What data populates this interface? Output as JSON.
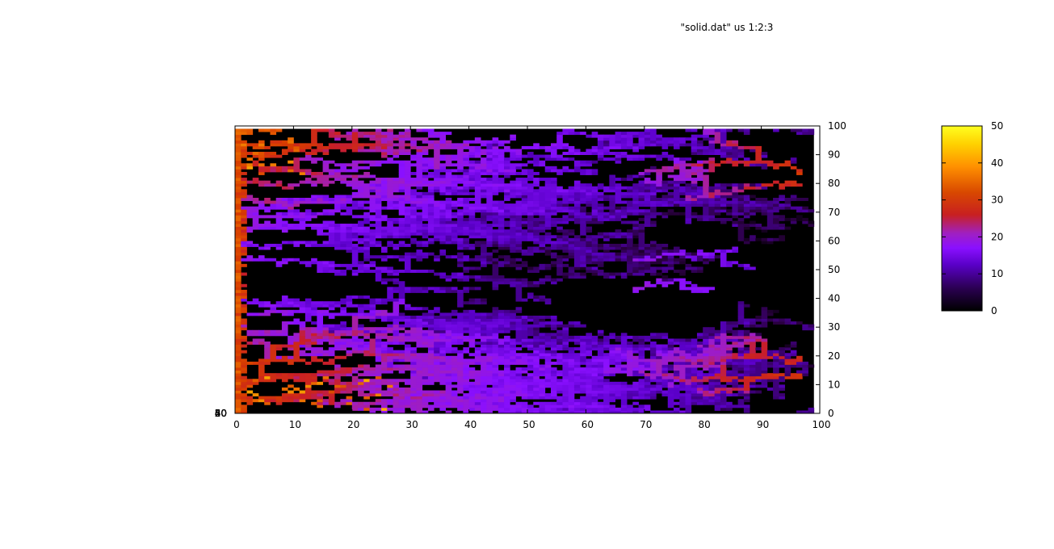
{
  "chart_data": {
    "type": "heatmap",
    "title": "",
    "key_label": "\"solid.dat\" us 1:2:3",
    "xlabel": "",
    "ylabel": "",
    "xlim": [
      0,
      100
    ],
    "ylim": [
      0,
      100
    ],
    "x_ticks": [
      "0",
      "10",
      "20",
      "30",
      "40",
      "50",
      "60",
      "70",
      "80",
      "90",
      "100"
    ],
    "y_ticks_right": [
      "0",
      "10",
      "20",
      "30",
      "40",
      "50",
      "60",
      "70",
      "80",
      "90",
      "100"
    ],
    "colorbar": {
      "range": [
        0,
        50
      ],
      "ticks": [
        "0",
        "10",
        "20",
        "30",
        "40",
        "50"
      ],
      "palette": [
        "#000000",
        "#2a0040",
        "#4a00a0",
        "#7a10ff",
        "#9a20e8",
        "#c01a30",
        "#d84000",
        "#ff8000",
        "#ffe000",
        "#ffff20"
      ]
    },
    "left_edge_overlapping_labels": [
      "20",
      "30",
      "40",
      "50",
      "60"
    ],
    "grid": false,
    "legend_placement": "top-right",
    "structure": "dendritic solidification pattern spreading from the left boundary (x = 0) with horizontal branches; values up to ~45 near the left wall, ~10–20 on branches, 0 in the background"
  }
}
